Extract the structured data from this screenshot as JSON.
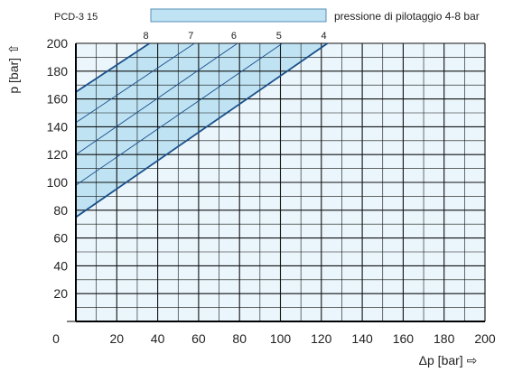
{
  "chart_data": {
    "type": "line",
    "title": "PCD-3 15",
    "legend": {
      "label": "pressione di pilotaggio 4-8 bar",
      "color": "#bfe3f3",
      "border": "#5a8fb5"
    },
    "xlabel": "Δp [bar] ⇨",
    "ylabel": "p [bar] ⇧",
    "xlim": [
      0,
      200
    ],
    "ylim": [
      0,
      200
    ],
    "grid": true,
    "x_ticks": [
      0,
      20,
      40,
      60,
      80,
      100,
      120,
      140,
      160,
      180,
      200
    ],
    "y_ticks": [
      20,
      40,
      60,
      80,
      100,
      120,
      140,
      160,
      180,
      200
    ],
    "background_color": "#eaf6fc",
    "band_color": "#bfe3f3",
    "line_color": "#1a4f8a",
    "series": [
      {
        "name": "8",
        "x": [
          0,
          36
        ],
        "y": [
          165,
          200
        ]
      },
      {
        "name": "7",
        "x": [
          0,
          58
        ],
        "y": [
          143,
          200
        ]
      },
      {
        "name": "6",
        "x": [
          0,
          79
        ],
        "y": [
          120,
          200
        ]
      },
      {
        "name": "5",
        "x": [
          0,
          101
        ],
        "y": [
          98,
          200
        ]
      },
      {
        "name": "4",
        "x": [
          0,
          123
        ],
        "y": [
          75,
          200
        ]
      }
    ]
  }
}
